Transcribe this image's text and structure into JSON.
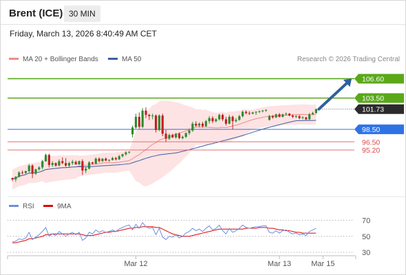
{
  "header": {
    "title": "Brent (ICE)",
    "interval": "30 MIN"
  },
  "datetime": "Friday, March 13, 2026 8:40:49 AM CET",
  "legend": {
    "bb_label": "MA 20 + Bollinger Bands",
    "ma50_label": "MA 50",
    "credit": "Research © 2026 Trading Central"
  },
  "colors": {
    "ma20": "#f08a8a",
    "bb_fill": "#fde3e3",
    "ma50": "#3c5da8",
    "up": "#2e8b2e",
    "down": "#c22222",
    "level_green": "#5aa81a",
    "level_blue": "#2f72e6",
    "level_red": "#e07070",
    "current": "#2b2b2b",
    "arrow": "#2f5fa0",
    "rsi": "#6b8ee0",
    "rsi_ma": "#e00000"
  },
  "chart_data": {
    "type": "candlestick",
    "x_labels": [
      "Mar 12",
      "Mar 13",
      "Mar 15"
    ],
    "ylim": [
      88.5,
      108.3
    ],
    "levels": [
      {
        "value": 106.6,
        "label": "106.60",
        "kind": "resistance",
        "color": "green"
      },
      {
        "value": 103.5,
        "label": "103.50",
        "kind": "resistance",
        "color": "green"
      },
      {
        "value": 101.73,
        "label": "101.73",
        "kind": "current",
        "color": "dark"
      },
      {
        "value": 98.5,
        "label": "98.50",
        "kind": "pivot",
        "color": "blue"
      },
      {
        "value": 96.5,
        "label": "96.50",
        "kind": "support",
        "color": "red"
      },
      {
        "value": 95.2,
        "label": "95.20",
        "kind": "support",
        "color": "red"
      }
    ],
    "forecast_arrow": {
      "from": 101.73,
      "to": 106.6
    },
    "candles": [
      [
        90.7,
        90.8,
        90.2,
        90.5
      ],
      [
        90.5,
        91.0,
        90.1,
        90.9
      ],
      [
        90.9,
        91.8,
        90.8,
        91.6
      ],
      [
        91.6,
        91.9,
        91.3,
        91.5
      ],
      [
        91.5,
        91.9,
        91.4,
        91.8
      ],
      [
        91.8,
        92.9,
        91.6,
        92.7
      ],
      [
        92.7,
        92.9,
        90.7,
        91.4
      ],
      [
        91.4,
        92.2,
        91.2,
        92.1
      ],
      [
        92.1,
        92.6,
        91.9,
        92.4
      ],
      [
        92.4,
        93.6,
        92.1,
        93.4
      ],
      [
        93.4,
        94.6,
        93.3,
        94.4
      ],
      [
        94.4,
        94.6,
        92.4,
        92.8
      ],
      [
        92.8,
        93.4,
        92.5,
        93.1
      ],
      [
        93.1,
        93.2,
        92.5,
        92.7
      ],
      [
        92.7,
        93.7,
        92.6,
        93.4
      ],
      [
        93.4,
        94.0,
        92.9,
        93.1
      ],
      [
        93.1,
        93.9,
        92.5,
        92.7
      ],
      [
        92.7,
        93.3,
        92.5,
        93.1
      ],
      [
        93.1,
        93.6,
        92.8,
        93.3
      ],
      [
        93.3,
        93.5,
        92.8,
        92.9
      ],
      [
        92.9,
        93.5,
        92.8,
        93.4
      ],
      [
        93.4,
        93.7,
        91.2,
        91.9
      ],
      [
        91.9,
        92.5,
        91.5,
        92.2
      ],
      [
        92.2,
        93.4,
        92.1,
        93.2
      ],
      [
        93.2,
        93.3,
        92.9,
        93.0
      ],
      [
        93.0,
        94.0,
        92.9,
        93.8
      ],
      [
        93.8,
        94.0,
        93.2,
        93.4
      ],
      [
        93.4,
        93.9,
        93.3,
        93.8
      ],
      [
        93.8,
        94.0,
        93.4,
        93.5
      ],
      [
        93.5,
        93.7,
        93.3,
        93.6
      ],
      [
        93.6,
        94.1,
        93.5,
        93.9
      ],
      [
        93.9,
        94.1,
        93.5,
        93.7
      ],
      [
        93.7,
        94.4,
        93.6,
        94.2
      ],
      [
        94.2,
        94.6,
        94.0,
        94.5
      ],
      [
        94.5,
        95.0,
        94.3,
        94.8
      ],
      [
        94.8,
        95.0,
        94.6,
        94.9
      ],
      [
        97.7,
        99.1,
        97.2,
        98.8
      ],
      [
        98.8,
        101.0,
        98.6,
        100.5
      ],
      [
        100.5,
        101.2,
        98.6,
        98.9
      ],
      [
        98.9,
        101.9,
        98.7,
        101.5
      ],
      [
        101.5,
        102.0,
        100.3,
        100.8
      ],
      [
        100.8,
        101.0,
        100.0,
        100.6
      ],
      [
        100.6,
        101.0,
        100.1,
        100.7
      ],
      [
        100.7,
        100.9,
        98.0,
        98.4
      ],
      [
        98.4,
        100.9,
        98.2,
        100.7
      ],
      [
        100.7,
        101.0,
        97.4,
        97.8
      ],
      [
        97.8,
        98.4,
        96.5,
        97.0
      ],
      [
        97.0,
        97.8,
        96.8,
        97.6
      ],
      [
        97.6,
        97.8,
        97.1,
        97.2
      ],
      [
        97.2,
        97.9,
        97.0,
        97.8
      ],
      [
        97.8,
        98.0,
        96.9,
        97.1
      ],
      [
        97.1,
        97.5,
        96.9,
        97.3
      ],
      [
        97.3,
        98.0,
        97.1,
        97.9
      ],
      [
        97.9,
        98.6,
        97.6,
        98.3
      ],
      [
        98.3,
        99.7,
        98.1,
        99.4
      ],
      [
        99.4,
        99.8,
        98.9,
        99.1
      ],
      [
        99.1,
        99.6,
        98.8,
        99.4
      ],
      [
        99.4,
        99.7,
        98.8,
        99.0
      ],
      [
        99.0,
        100.0,
        98.9,
        99.8
      ],
      [
        99.8,
        100.6,
        99.4,
        100.3
      ],
      [
        100.3,
        100.6,
        99.5,
        99.8
      ],
      [
        99.8,
        100.3,
        99.6,
        100.1
      ],
      [
        100.1,
        101.0,
        99.9,
        100.8
      ],
      [
        100.8,
        101.0,
        99.8,
        100.1
      ],
      [
        100.1,
        100.5,
        99.1,
        99.4
      ],
      [
        99.4,
        100.8,
        99.3,
        100.5
      ],
      [
        100.5,
        100.7,
        98.5,
        99.8
      ],
      [
        99.8,
        100.3,
        99.6,
        100.0
      ],
      [
        100.0,
        100.8,
        99.9,
        100.6
      ],
      [
        100.6,
        101.5,
        100.4,
        101.3
      ],
      [
        101.3,
        101.5,
        100.9,
        101.1
      ],
      [
        101.1,
        101.4,
        100.8,
        101.0
      ],
      [
        101.0,
        101.3,
        100.9,
        101.2
      ],
      [
        101.2,
        101.4,
        100.8,
        101.3
      ],
      [
        101.3,
        101.5,
        101.1,
        101.4
      ],
      [
        101.4,
        101.6,
        101.2,
        101.5
      ],
      [
        101.5,
        101.7,
        101.3,
        101.6
      ],
      [
        100.0,
        100.8,
        99.9,
        100.6
      ],
      [
        100.6,
        100.8,
        100.2,
        100.4
      ],
      [
        100.4,
        101.0,
        100.3,
        100.9
      ],
      [
        100.9,
        101.1,
        100.4,
        100.5
      ],
      [
        100.5,
        101.0,
        100.4,
        100.9
      ],
      [
        100.9,
        101.2,
        100.7,
        101.0
      ],
      [
        101.0,
        101.1,
        100.6,
        100.7
      ],
      [
        100.7,
        100.9,
        100.3,
        100.5
      ],
      [
        100.5,
        100.8,
        100.3,
        100.6
      ],
      [
        100.6,
        100.8,
        100.1,
        100.3
      ],
      [
        100.3,
        100.6,
        100.1,
        100.4
      ],
      [
        100.4,
        100.5,
        100.0,
        100.1
      ],
      [
        100.1,
        101.1,
        100.0,
        100.9
      ],
      [
        100.9,
        101.3,
        100.8,
        101.1
      ],
      [
        101.1,
        101.8,
        101.0,
        101.73
      ]
    ],
    "rsi": {
      "name": "RSI",
      "ma_name": "9MA",
      "ylim": [
        25,
        78
      ],
      "ticks": [
        70,
        50,
        30
      ],
      "rsi_values": [
        43,
        44,
        47,
        46,
        48,
        55,
        46,
        49,
        52,
        56,
        61,
        50,
        53,
        51,
        56,
        53,
        50,
        53,
        55,
        52,
        55,
        45,
        48,
        55,
        53,
        58,
        55,
        57,
        55,
        56,
        58,
        56,
        59,
        61,
        63,
        64,
        58,
        65,
        60,
        67,
        62,
        60,
        61,
        52,
        60,
        49,
        46,
        50,
        49,
        52,
        48,
        50,
        54,
        56,
        60,
        57,
        59,
        56,
        60,
        63,
        58,
        60,
        64,
        57,
        53,
        60,
        55,
        57,
        60,
        64,
        61,
        60,
        61,
        62,
        62,
        63,
        63,
        55,
        54,
        57,
        54,
        57,
        58,
        55,
        53,
        54,
        52,
        53,
        51,
        56,
        58,
        60
      ],
      "ma_values": [
        42,
        42,
        43,
        44,
        45,
        47,
        47,
        48,
        49,
        50,
        52,
        52,
        53,
        53,
        53,
        53,
        53,
        53,
        53,
        53,
        53,
        52,
        51,
        51,
        51,
        52,
        53,
        54,
        55,
        55,
        56,
        56,
        57,
        58,
        59,
        60,
        60,
        61,
        61,
        62,
        62,
        62,
        62,
        61,
        61,
        59,
        57,
        55,
        53,
        52,
        51,
        50,
        50,
        50,
        51,
        52,
        53,
        54,
        55,
        56,
        57,
        58,
        59,
        59,
        59,
        59,
        59,
        59,
        59,
        59,
        60,
        60,
        60,
        60,
        61,
        61,
        61,
        60,
        60,
        59,
        58,
        58,
        57,
        57,
        56,
        55,
        55,
        54,
        54,
        54,
        54,
        54
      ]
    }
  }
}
